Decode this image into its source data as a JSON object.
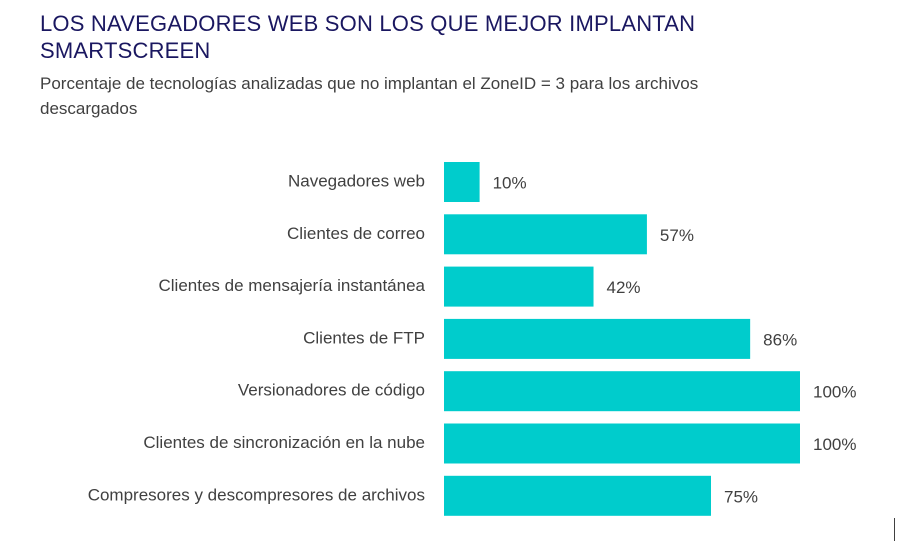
{
  "header": {
    "title": "LOS NAVEGADORES WEB SON LOS QUE MEJOR IMPLANTAN SMARTSCREEN",
    "subtitle": "Porcentaje de tecnologías analizadas que no  implantan el ZoneID = 3 para los archivos descargados"
  },
  "colors": {
    "bar": "#00cccc",
    "title": "#1a1760",
    "text": "#404040"
  },
  "chart_data": {
    "type": "bar",
    "orientation": "horizontal",
    "title": "LOS NAVEGADORES WEB SON LOS QUE MEJOR IMPLANTAN SMARTSCREEN",
    "subtitle": "Porcentaje de tecnologías analizadas que no  implantan el ZoneID = 3 para los archivos descargados",
    "categories": [
      "Navegadores web",
      "Clientes de correo",
      "Clientes de mensajería instantánea",
      "Clientes de FTP",
      "Versionadores de código",
      "Clientes de sincronización en la nube",
      "Compresores y descompresores de archivos"
    ],
    "values": [
      10,
      57,
      42,
      86,
      100,
      100,
      75
    ],
    "value_labels": [
      "10%",
      "57%",
      "42%",
      "86%",
      "100%",
      "100%",
      "75%"
    ],
    "xlim": [
      0,
      100
    ],
    "grid": false,
    "axes_visible": false
  }
}
